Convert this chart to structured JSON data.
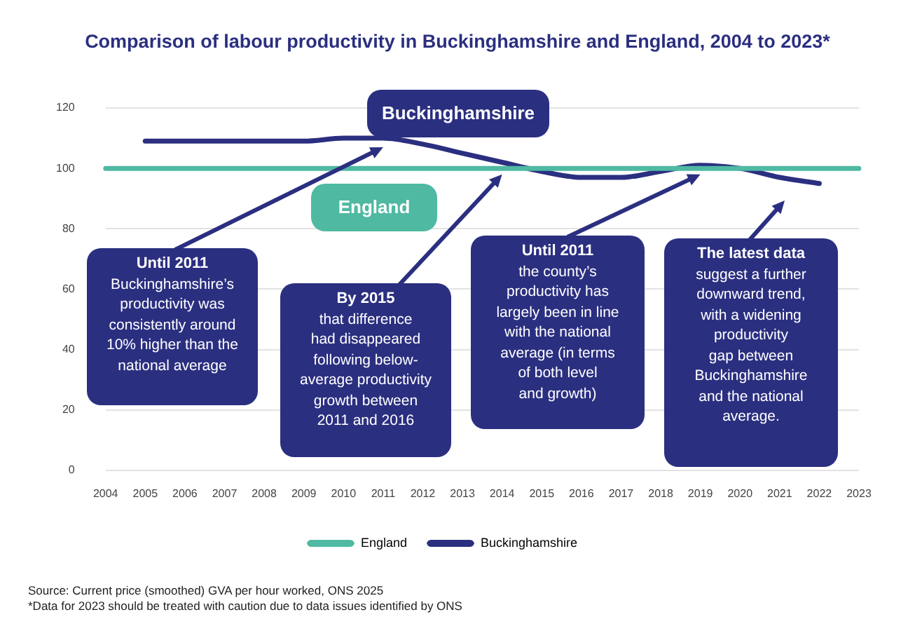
{
  "chart_data": {
    "type": "line",
    "title": "Comparison of labour productivity in Buckinghamshire and England, 2004 to 2023*",
    "categories": [
      "2004",
      "2005",
      "2006",
      "2007",
      "2008",
      "2009",
      "2010",
      "2011",
      "2012",
      "2013",
      "2014",
      "2015",
      "2016",
      "2017",
      "2018",
      "2019",
      "2020",
      "2021",
      "2022",
      "2023"
    ],
    "series": [
      {
        "name": "England",
        "color": "#4fb9a2",
        "values": [
          100,
          100,
          100,
          100,
          100,
          100,
          100,
          100,
          100,
          100,
          100,
          100,
          100,
          100,
          100,
          100,
          100,
          100,
          100,
          100
        ]
      },
      {
        "name": "Buckinghamshire",
        "color": "#2b2f80",
        "values": [
          null,
          109,
          109,
          109,
          109,
          109,
          110,
          110,
          108,
          105,
          102,
          99,
          97,
          97,
          99,
          101,
          100,
          97,
          95,
          null
        ]
      }
    ],
    "ylim": [
      0,
      120
    ],
    "yticks": [
      0,
      20,
      40,
      60,
      80,
      100,
      120
    ],
    "grid": "y",
    "legend": "bottom",
    "marker": "none",
    "line_style": "solid",
    "annotations": [
      {
        "text": "Until 2011\nBuckinghamshire’s\nproductivity was\nconsistently around\n10% higher than the\nnational average",
        "x": "2011",
        "y": 107
      },
      {
        "text": "By 2015\nthat difference\nhad disappeared\nfollowing below-\naverage productivity\ngrowth between\n2011 and 2016",
        "x": "2014",
        "y": 98
      },
      {
        "text": "Until 2011\nthe county’s\nproductivity has\nlargely been in line\nwith the national\naverage (in terms\nof both level\nand growth)",
        "x": "2019",
        "y": 98
      },
      "The latest data\nsuggest a further\ndownward trend,\nwith a widening\nproductivity\ngap between\nBuckinghamshire\nand the national\naverage.",
      "Source: Current price (smoothed) GVA per hour worked, ONS 2025",
      "*Data for 2023 should be treated with caution due to data issues identified by ONS"
    ]
  }
}
